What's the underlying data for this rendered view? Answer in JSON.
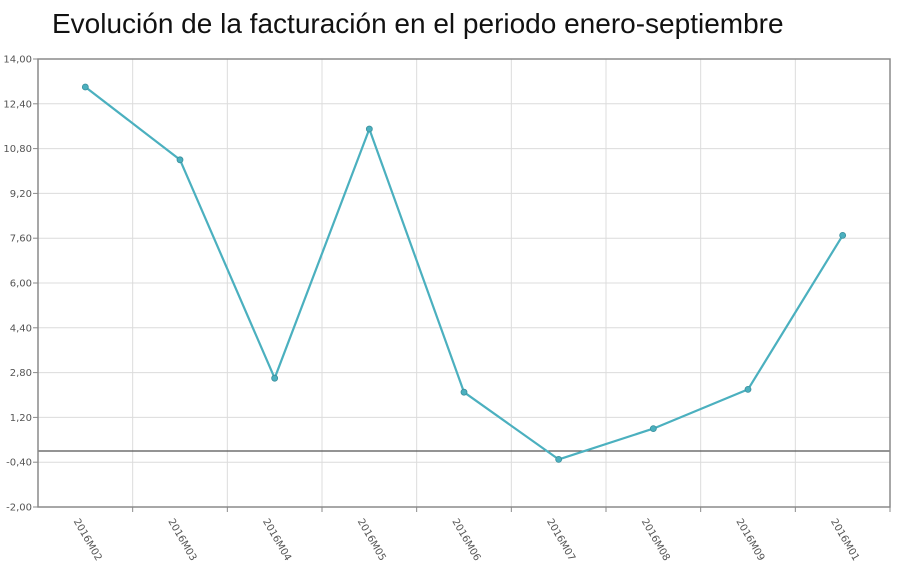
{
  "chart_data": {
    "type": "line",
    "title": "Evolución de la facturación en el periodo enero-septiembre",
    "categories": [
      "2016M02",
      "2016M03",
      "2016M04",
      "2016M05",
      "2016M06",
      "2016M07",
      "2016M08",
      "2016M09",
      "2016M01"
    ],
    "series": [
      {
        "values": [
          13.0,
          10.4,
          2.6,
          11.5,
          2.1,
          -0.3,
          0.8,
          2.2,
          7.7
        ]
      }
    ],
    "y_ticks": [
      "14,00",
      "12,40",
      "10,80",
      "9,20",
      "7,60",
      "6,00",
      "4,40",
      "2,80",
      "1,20",
      "-0,40",
      "-2,00"
    ],
    "ylim": [
      -2.0,
      14.0
    ],
    "reference_line": 0,
    "grid": true,
    "colors": {
      "line": "#4bb0bf",
      "reference": "#555555",
      "grid": "#dcdcdc",
      "frame": "#8a8a8a"
    }
  }
}
